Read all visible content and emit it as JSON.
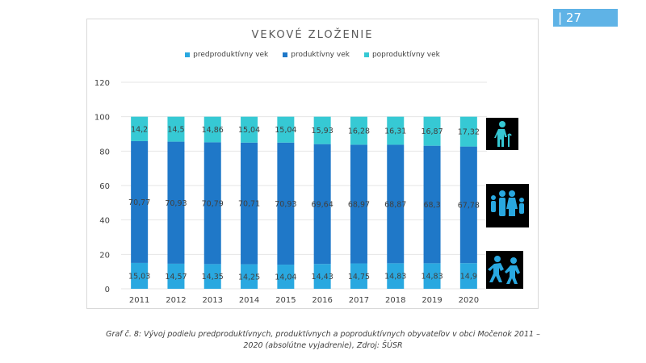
{
  "page": {
    "number": "| 27"
  },
  "chart_data": {
    "type": "bar",
    "stacked": true,
    "title": "VEKOVÉ ZLOŽENIE",
    "categories": [
      "2011",
      "2012",
      "2013",
      "2014",
      "2015",
      "2016",
      "2017",
      "2018",
      "2019",
      "2020"
    ],
    "series": [
      {
        "name": "predproduktívny vek",
        "color": "#29a8e0",
        "values": [
          15.03,
          14.57,
          14.35,
          14.25,
          14.04,
          14.43,
          14.75,
          14.83,
          14.83,
          14.9
        ],
        "labels": [
          "15,03",
          "14,57",
          "14,35",
          "14,25",
          "14,04",
          "14,43",
          "14,75",
          "14,83",
          "14,83",
          "14,9"
        ]
      },
      {
        "name": "produktívny vek",
        "color": "#1f78c8",
        "values": [
          70.77,
          70.93,
          70.79,
          70.71,
          70.93,
          69.64,
          68.97,
          68.87,
          68.3,
          67.78
        ],
        "labels": [
          "70,77",
          "70,93",
          "70,79",
          "70,71",
          "70,93",
          "69,64",
          "68,97",
          "68,87",
          "68,3",
          "67,78"
        ]
      },
      {
        "name": "poproduktívny vek",
        "color": "#36c9d4",
        "values": [
          14.2,
          14.5,
          14.86,
          15.04,
          15.04,
          15.93,
          16.28,
          16.31,
          16.87,
          17.32
        ],
        "labels": [
          "14,2",
          "14,5",
          "14,86",
          "15,04",
          "15,04",
          "15,93",
          "16,28",
          "16,31",
          "16,87",
          "17,32"
        ]
      }
    ],
    "ylim": [
      0,
      120
    ],
    "yticks": [
      "0",
      "20",
      "40",
      "60",
      "80",
      "100",
      "120"
    ],
    "grid": true,
    "legend_position": "top"
  },
  "icons": {
    "elderly": "elderly-person-icon",
    "family": "family-icon",
    "children": "children-playing-icon"
  },
  "caption": {
    "line1": "Graf č. 8: Vývoj podielu predproduktívnych, produktívnych a poproduktívnych obyvateľov v obci Močenok 2011 –",
    "line2": "2020 (absolútne vyjadrenie), Zdroj: ŠÚSR"
  }
}
